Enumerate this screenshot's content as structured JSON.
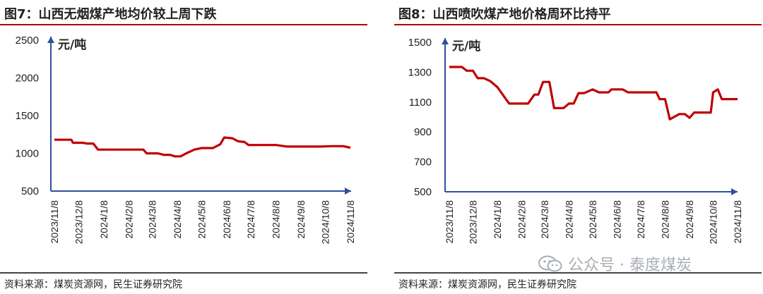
{
  "charts": [
    {
      "title": "图7：山西无烟煤产地均价较上周下跌",
      "unit": "元/吨",
      "source": "资料来源：煤炭资源网，民生证券研究院",
      "yticks": [
        "2500",
        "2000",
        "1500",
        "1000",
        "500"
      ],
      "xticks": [
        "2023/11/8",
        "2023/12/8",
        "2024/1/8",
        "2024/2/8",
        "2024/3/8",
        "2024/4/8",
        "2024/5/8",
        "2024/6/8",
        "2024/7/8",
        "2024/8/8",
        "2024/9/8",
        "2024/10/8",
        "2024/11/8"
      ]
    },
    {
      "title": "图8：山西喷吹煤产地价格周环比持平",
      "unit": "元/吨",
      "source": "资料来源：煤炭资源网，民生证券研究院",
      "yticks": [
        "1500",
        "1300",
        "1100",
        "900",
        "700",
        "500"
      ],
      "xticks": [
        "2023/11/8",
        "2023/12/8",
        "2024/1/8",
        "2024/2/8",
        "2024/3/8",
        "2024/4/8",
        "2024/5/8",
        "2024/6/8",
        "2024/7/8",
        "2024/8/8",
        "2024/9/8",
        "2024/10/8",
        "2024/11/8"
      ]
    }
  ],
  "chart_data": [
    {
      "type": "line",
      "title": "图7：山西无烟煤产地均价较上周下跌",
      "ylabel": "元/吨",
      "ylim": [
        500,
        2500
      ],
      "x": [
        "2023/11/8",
        "2023/12/8",
        "2024/1/8",
        "2024/2/8",
        "2024/3/8",
        "2024/4/8",
        "2024/5/8",
        "2024/6/8",
        "2024/7/8",
        "2024/8/8",
        "2024/9/8",
        "2024/10/8",
        "2024/11/8"
      ],
      "color": "#c00000",
      "points": [
        [
          "2023/11/8",
          1180
        ],
        [
          "2023/11/29",
          1180
        ],
        [
          "2023/12/1",
          1140
        ],
        [
          "2023/12/13",
          1140
        ],
        [
          "2023/12/18",
          1130
        ],
        [
          "2023/12/26",
          1130
        ],
        [
          "2024/1/1",
          1050
        ],
        [
          "2024/1/19",
          1050
        ],
        [
          "2024/1/26",
          1050
        ],
        [
          "2024/2/26",
          1050
        ],
        [
          "2024/3/1",
          1000
        ],
        [
          "2024/3/15",
          1000
        ],
        [
          "2024/3/22",
          980
        ],
        [
          "2024/3/30",
          980
        ],
        [
          "2024/4/5",
          960
        ],
        [
          "2024/4/12",
          960
        ],
        [
          "2024/4/19",
          1000
        ],
        [
          "2024/4/29",
          1050
        ],
        [
          "2024/5/8",
          1070
        ],
        [
          "2024/5/22",
          1070
        ],
        [
          "2024/5/31",
          1120
        ],
        [
          "2024/6/5",
          1210
        ],
        [
          "2024/6/15",
          1200
        ],
        [
          "2024/6/22",
          1160
        ],
        [
          "2024/6/30",
          1150
        ],
        [
          "2024/7/5",
          1110
        ],
        [
          "2024/7/22",
          1110
        ],
        [
          "2024/8/8",
          1110
        ],
        [
          "2024/8/15",
          1100
        ],
        [
          "2024/8/22",
          1090
        ],
        [
          "2024/9/8",
          1090
        ],
        [
          "2024/10/2",
          1090
        ],
        [
          "2024/10/16",
          1095
        ],
        [
          "2024/10/30",
          1095
        ],
        [
          "2024/11/8",
          1075
        ]
      ]
    },
    {
      "type": "line",
      "title": "图8：山西喷吹煤产地价格周环比持平",
      "ylabel": "元/吨",
      "ylim": [
        500,
        1500
      ],
      "x": [
        "2023/11/8",
        "2023/12/8",
        "2024/1/8",
        "2024/2/8",
        "2024/3/8",
        "2024/4/8",
        "2024/5/8",
        "2024/6/8",
        "2024/7/8",
        "2024/8/8",
        "2024/9/8",
        "2024/10/8",
        "2024/11/8"
      ],
      "color": "#c00000",
      "points": [
        [
          "2023/11/8",
          1335
        ],
        [
          "2023/11/24",
          1335
        ],
        [
          "2023/11/30",
          1310
        ],
        [
          "2023/12/8",
          1310
        ],
        [
          "2023/12/14",
          1260
        ],
        [
          "2023/12/22",
          1260
        ],
        [
          "2023/12/30",
          1240
        ],
        [
          "2024/1/8",
          1200
        ],
        [
          "2024/1/23",
          1090
        ],
        [
          "2024/2/8",
          1090
        ],
        [
          "2024/2/16",
          1090
        ],
        [
          "2024/2/24",
          1150
        ],
        [
          "2024/2/29",
          1150
        ],
        [
          "2024/3/6",
          1235
        ],
        [
          "2024/3/14",
          1235
        ],
        [
          "2024/3/20",
          1060
        ],
        [
          "2024/4/1",
          1060
        ],
        [
          "2024/4/8",
          1090
        ],
        [
          "2024/4/14",
          1090
        ],
        [
          "2024/4/20",
          1160
        ],
        [
          "2024/4/27",
          1160
        ],
        [
          "2024/5/8",
          1185
        ],
        [
          "2024/5/16",
          1165
        ],
        [
          "2024/5/28",
          1165
        ],
        [
          "2024/6/1",
          1185
        ],
        [
          "2024/6/15",
          1185
        ],
        [
          "2024/6/22",
          1165
        ],
        [
          "2024/7/22",
          1165
        ],
        [
          "2024/7/28",
          1165
        ],
        [
          "2024/8/1",
          1120
        ],
        [
          "2024/8/8",
          1120
        ],
        [
          "2024/8/14",
          985
        ],
        [
          "2024/8/26",
          1020
        ],
        [
          "2024/9/2",
          1020
        ],
        [
          "2024/9/8",
          995
        ],
        [
          "2024/9/14",
          1030
        ],
        [
          "2024/9/29",
          1030
        ],
        [
          "2024/10/5",
          1030
        ],
        [
          "2024/10/8",
          1165
        ],
        [
          "2024/10/14",
          1185
        ],
        [
          "2024/10/19",
          1120
        ],
        [
          "2024/10/26",
          1120
        ],
        [
          "2024/11/1",
          1120
        ],
        [
          "2024/11/8",
          1120
        ]
      ]
    }
  ],
  "watermark": {
    "text": "公众号 · 泰度煤炭",
    "logo_icon": "wechat-logo-icon"
  }
}
